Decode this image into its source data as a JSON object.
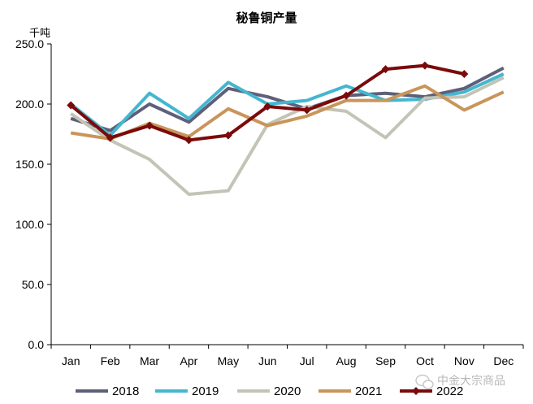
{
  "chart_data": {
    "type": "line",
    "title": "秘鲁铜产量",
    "ylabel": "千吨",
    "xlabel": "",
    "categories": [
      "Jan",
      "Feb",
      "Mar",
      "Apr",
      "May",
      "Jun",
      "Jul",
      "Aug",
      "Sep",
      "Oct",
      "Nov",
      "Dec"
    ],
    "ylim": [
      0,
      250
    ],
    "yticks": [
      "0.0",
      "50.0",
      "100.0",
      "150.0",
      "200.0",
      "250.0"
    ],
    "grid": false,
    "legend_position": "bottom",
    "series": [
      {
        "name": "2018",
        "color": "#5e5f79",
        "marker": "none",
        "values": [
          188,
          178,
          200,
          185,
          213,
          206,
          196,
          207,
          209,
          206,
          213,
          230
        ]
      },
      {
        "name": "2019",
        "color": "#45b6cf",
        "marker": "none",
        "values": [
          200,
          174,
          209,
          188,
          218,
          200,
          203,
          215,
          203,
          204,
          210,
          225
        ]
      },
      {
        "name": "2020",
        "color": "#c3c4b6",
        "marker": "none",
        "values": [
          192,
          170,
          154,
          125,
          128,
          183,
          198,
          194,
          172,
          205,
          206,
          222
        ]
      },
      {
        "name": "2021",
        "color": "#c8955a",
        "marker": "none",
        "values": [
          176,
          171,
          184,
          173,
          196,
          182,
          190,
          203,
          203,
          215,
          195,
          210
        ]
      },
      {
        "name": "2022",
        "color": "#7b0a0a",
        "marker": "diamond",
        "values": [
          199,
          172,
          182,
          170,
          174,
          198,
          195,
          207,
          229,
          232,
          225,
          null
        ]
      }
    ]
  },
  "watermark": {
    "text": "中金大宗商品",
    "icon": "wechat-icon"
  }
}
